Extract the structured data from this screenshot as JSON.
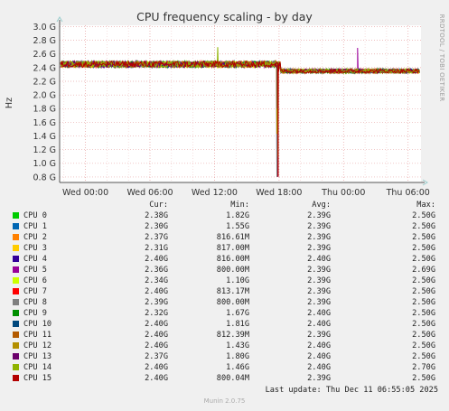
{
  "chart_data": {
    "type": "line",
    "title": "CPU frequency scaling - by day",
    "ylabel": "Hz",
    "side_text": "RRDTOOL / TOBI OETIKER",
    "y_ticks": [
      "0.8 G",
      "1.0 G",
      "1.2 G",
      "1.4 G",
      "1.6 G",
      "1.8 G",
      "2.0 G",
      "2.2 G",
      "2.4 G",
      "2.6 G",
      "2.8 G",
      "3.0 G"
    ],
    "ylim": [
      0.72,
      3.02
    ],
    "x_ticks": [
      {
        "label": "Wed 00:00",
        "t": 0
      },
      {
        "label": "Wed 06:00",
        "t": 6
      },
      {
        "label": "Wed 12:00",
        "t": 12
      },
      {
        "label": "Wed 18:00",
        "t": 18
      },
      {
        "label": "Thu 00:00",
        "t": 24
      },
      {
        "label": "Thu 06:00",
        "t": 30
      }
    ],
    "xlim": [
      -2.4,
      31.2
    ],
    "profile": {
      "before_step_level": 2.45,
      "after_step_level": 2.35,
      "step_t": 18.1,
      "dip_t": 17.8,
      "dip_min": 0.8,
      "spike_green_t": 12.3,
      "spike_green_max": 2.7,
      "spike_purple_t": 25.3,
      "spike_purple_max": 2.69
    },
    "columns": [
      "Cur:",
      "Min:",
      "Avg:",
      "Max:"
    ],
    "series": [
      {
        "name": "CPU 0",
        "color": "#00cc00",
        "cur": "2.38G",
        "min": "1.82G",
        "avg": "2.39G",
        "max": "2.50G"
      },
      {
        "name": "CPU 1",
        "color": "#0066b3",
        "cur": "2.30G",
        "min": "1.55G",
        "avg": "2.39G",
        "max": "2.50G"
      },
      {
        "name": "CPU 2",
        "color": "#ff8000",
        "cur": "2.37G",
        "min": "816.61M",
        "avg": "2.39G",
        "max": "2.50G"
      },
      {
        "name": "CPU 3",
        "color": "#ffcc00",
        "cur": "2.31G",
        "min": "817.00M",
        "avg": "2.39G",
        "max": "2.50G"
      },
      {
        "name": "CPU 4",
        "color": "#330099",
        "cur": "2.40G",
        "min": "816.00M",
        "avg": "2.40G",
        "max": "2.50G"
      },
      {
        "name": "CPU 5",
        "color": "#990099",
        "cur": "2.36G",
        "min": "800.00M",
        "avg": "2.39G",
        "max": "2.69G"
      },
      {
        "name": "CPU 6",
        "color": "#ccff00",
        "cur": "2.34G",
        "min": "1.10G",
        "avg": "2.39G",
        "max": "2.50G"
      },
      {
        "name": "CPU 7",
        "color": "#ff0000",
        "cur": "2.40G",
        "min": "813.17M",
        "avg": "2.39G",
        "max": "2.50G"
      },
      {
        "name": "CPU 8",
        "color": "#808080",
        "cur": "2.39G",
        "min": "800.00M",
        "avg": "2.39G",
        "max": "2.50G"
      },
      {
        "name": "CPU 9",
        "color": "#008f00",
        "cur": "2.32G",
        "min": "1.67G",
        "avg": "2.40G",
        "max": "2.50G"
      },
      {
        "name": "CPU 10",
        "color": "#00487d",
        "cur": "2.40G",
        "min": "1.81G",
        "avg": "2.40G",
        "max": "2.50G"
      },
      {
        "name": "CPU 11",
        "color": "#b35a00",
        "cur": "2.40G",
        "min": "812.39M",
        "avg": "2.39G",
        "max": "2.50G"
      },
      {
        "name": "CPU 12",
        "color": "#b38f00",
        "cur": "2.40G",
        "min": "1.43G",
        "avg": "2.40G",
        "max": "2.50G"
      },
      {
        "name": "CPU 13",
        "color": "#6b006b",
        "cur": "2.37G",
        "min": "1.80G",
        "avg": "2.40G",
        "max": "2.50G"
      },
      {
        "name": "CPU 14",
        "color": "#8fb300",
        "cur": "2.40G",
        "min": "1.46G",
        "avg": "2.40G",
        "max": "2.70G"
      },
      {
        "name": "CPU 15",
        "color": "#b30000",
        "cur": "2.40G",
        "min": "800.04M",
        "avg": "2.39G",
        "max": "2.50G"
      }
    ],
    "last_update": "Last update: Thu Dec 11 06:55:05 2025",
    "brand": "Munin 2.0.75"
  }
}
